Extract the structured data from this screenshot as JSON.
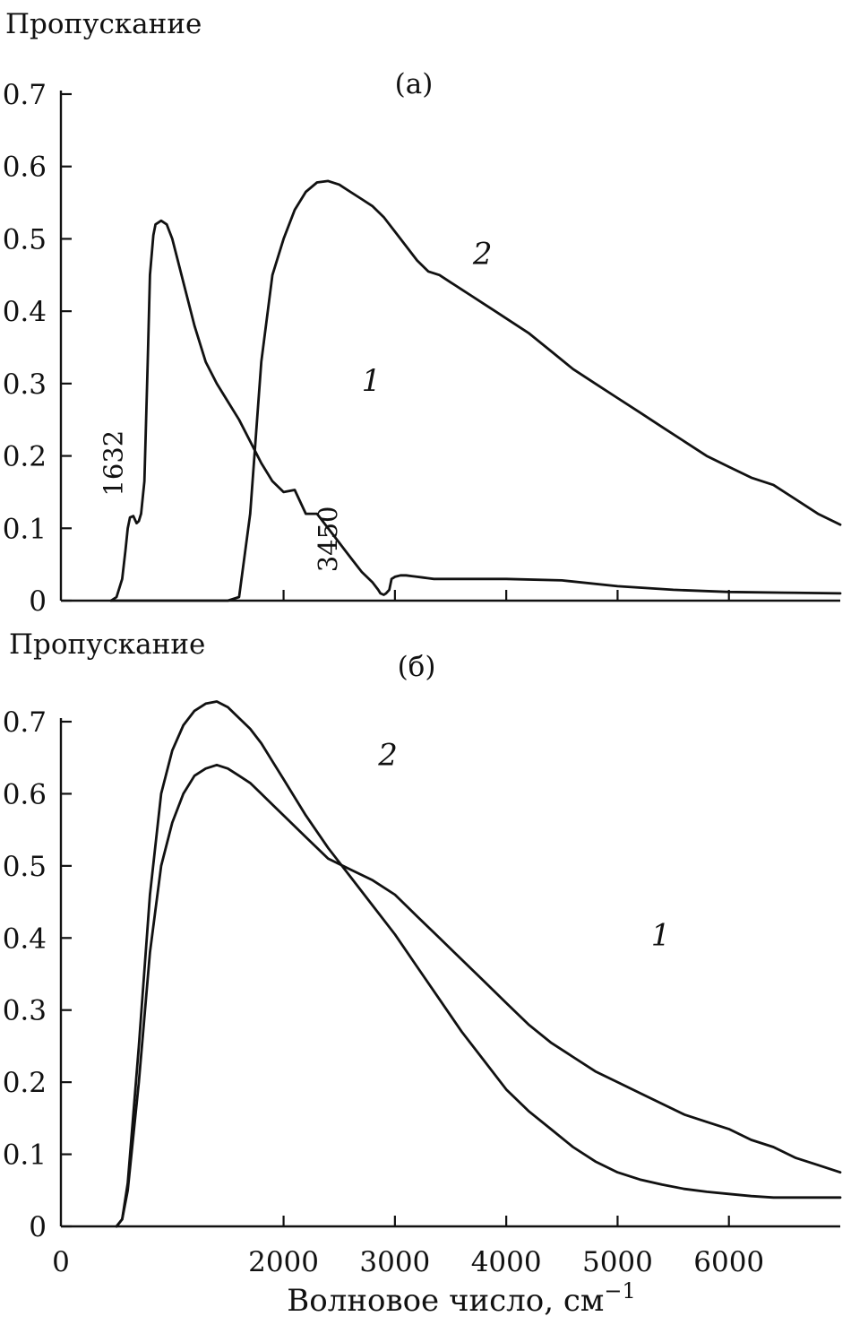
{
  "chart_data": [
    {
      "type": "line",
      "panel": "(а)",
      "ylabel": "Пропускание",
      "xlim": [
        0,
        7000
      ],
      "ylim": [
        0,
        0.7
      ],
      "yticks": [
        0,
        0.1,
        0.2,
        0.3,
        0.4,
        0.5,
        0.6,
        0.7
      ],
      "ytick_labels": [
        "0",
        "0.1",
        "0.2",
        "0.3",
        "0.4",
        "0.5",
        "0.6",
        "0.7"
      ],
      "xticks": [
        2000,
        3000,
        4000,
        5000,
        6000
      ],
      "series": [
        {
          "name": "1",
          "x": [
            450,
            500,
            550,
            580,
            600,
            620,
            650,
            680,
            700,
            720,
            750,
            780,
            800,
            830,
            850,
            900,
            950,
            1000,
            1100,
            1200,
            1300,
            1400,
            1500,
            1600,
            1700,
            1800,
            1900,
            2000,
            2100,
            2200,
            2300,
            2400,
            2500,
            2600,
            2700,
            2800,
            2850,
            2870,
            2900,
            2920,
            2950,
            2970,
            3000,
            3050,
            3100,
            3150,
            3200,
            3250,
            3300,
            3350,
            3400,
            3450,
            3500,
            3600,
            3650,
            3700,
            3750,
            3800,
            3900,
            4000,
            4500,
            5000,
            5500,
            6000,
            6500,
            7000
          ],
          "y": [
            0.0,
            0.005,
            0.03,
            0.07,
            0.1,
            0.115,
            0.117,
            0.107,
            0.11,
            0.12,
            0.165,
            0.33,
            0.45,
            0.505,
            0.52,
            0.525,
            0.52,
            0.5,
            0.44,
            0.38,
            0.33,
            0.3,
            0.275,
            0.25,
            0.22,
            0.19,
            0.165,
            0.15,
            0.153,
            0.12,
            0.12,
            0.1,
            0.08,
            0.06,
            0.04,
            0.025,
            0.015,
            0.01,
            0.008,
            0.01,
            0.015,
            0.03,
            0.033,
            0.035,
            0.035,
            0.034,
            0.033,
            0.032,
            0.031,
            0.03,
            0.03,
            0.03,
            0.03,
            0.03,
            0.03,
            0.03,
            0.03,
            0.03,
            0.03,
            0.03,
            0.028,
            0.02,
            0.015,
            0.012,
            0.011,
            0.01
          ],
          "label_pos": [
            2700,
            0.29
          ]
        },
        {
          "name": "2",
          "x": [
            450,
            500,
            600,
            700,
            800,
            900,
            1000,
            1100,
            1200,
            1300,
            1400,
            1500,
            1600,
            1700,
            1800,
            1900,
            2000,
            2100,
            2200,
            2300,
            2400,
            2500,
            2600,
            2700,
            2800,
            2900,
            3000,
            3100,
            3200,
            3300,
            3400,
            3500,
            3600,
            3700,
            3800,
            3900,
            4000,
            4200,
            4400,
            4600,
            4800,
            5000,
            5200,
            5400,
            5600,
            5800,
            6000,
            6200,
            6400,
            6600,
            6800,
            7000
          ],
          "y": [
            0.0,
            0.0,
            0.0,
            0.0,
            0.0,
            0.0,
            0.0,
            0.0,
            0.0,
            0.0,
            0.0,
            0.0,
            0.005,
            0.12,
            0.33,
            0.45,
            0.5,
            0.54,
            0.565,
            0.578,
            0.58,
            0.575,
            0.565,
            0.555,
            0.545,
            0.53,
            0.51,
            0.49,
            0.47,
            0.455,
            0.45,
            0.44,
            0.43,
            0.42,
            0.41,
            0.4,
            0.39,
            0.37,
            0.345,
            0.32,
            0.3,
            0.28,
            0.26,
            0.24,
            0.22,
            0.2,
            0.185,
            0.17,
            0.16,
            0.14,
            0.12,
            0.105
          ],
          "label_pos": [
            3700,
            0.465
          ]
        }
      ],
      "annotations": [
        {
          "text": "1632",
          "x": 550,
          "y": 0.19,
          "rotation": -90
        },
        {
          "text": "3450",
          "x": 2480,
          "y": 0.085,
          "rotation": -90
        }
      ]
    },
    {
      "type": "line",
      "panel": "(б)",
      "ylabel": "Пропускание",
      "xlabel": "Волновое число, см",
      "xlabel_sup": "−1",
      "xlim": [
        0,
        7000
      ],
      "ylim": [
        0,
        0.7
      ],
      "yticks": [
        0,
        0.1,
        0.2,
        0.3,
        0.4,
        0.5,
        0.6,
        0.7
      ],
      "ytick_labels": [
        "0",
        "0.1",
        "0.2",
        "0.3",
        "0.4",
        "0.5",
        "0.6",
        "0.7"
      ],
      "xticks": [
        0,
        2000,
        3000,
        4000,
        5000,
        6000
      ],
      "xtick_labels": [
        "0",
        "2000",
        "3000",
        "4000",
        "5000",
        "6000"
      ],
      "series": [
        {
          "name": "1",
          "x": [
            500,
            550,
            600,
            700,
            800,
            900,
            1000,
            1100,
            1200,
            1300,
            1400,
            1500,
            1600,
            1700,
            1800,
            1900,
            2000,
            2200,
            2400,
            2600,
            2800,
            3000,
            3200,
            3400,
            3600,
            3800,
            4000,
            4200,
            4400,
            4600,
            4800,
            5000,
            5200,
            5400,
            5600,
            5800,
            6000,
            6200,
            6400,
            6600,
            6800,
            7000
          ],
          "y": [
            0.0,
            0.01,
            0.05,
            0.2,
            0.38,
            0.5,
            0.56,
            0.6,
            0.625,
            0.635,
            0.64,
            0.635,
            0.625,
            0.615,
            0.6,
            0.585,
            0.57,
            0.54,
            0.51,
            0.495,
            0.48,
            0.46,
            0.43,
            0.4,
            0.37,
            0.34,
            0.31,
            0.28,
            0.255,
            0.235,
            0.215,
            0.2,
            0.185,
            0.17,
            0.155,
            0.145,
            0.135,
            0.12,
            0.11,
            0.095,
            0.085,
            0.075
          ],
          "label_pos": [
            5300,
            0.39
          ]
        },
        {
          "name": "2",
          "x": [
            500,
            550,
            600,
            700,
            800,
            900,
            1000,
            1100,
            1200,
            1300,
            1400,
            1500,
            1600,
            1700,
            1800,
            1900,
            2000,
            2200,
            2400,
            2600,
            2800,
            3000,
            3200,
            3400,
            3600,
            3800,
            4000,
            4200,
            4400,
            4600,
            4800,
            5000,
            5200,
            5400,
            5600,
            5800,
            6000,
            6200,
            6400,
            6600,
            6800,
            7000
          ],
          "y": [
            0.0,
            0.01,
            0.06,
            0.25,
            0.46,
            0.6,
            0.66,
            0.695,
            0.715,
            0.725,
            0.728,
            0.72,
            0.705,
            0.69,
            0.67,
            0.645,
            0.62,
            0.57,
            0.525,
            0.485,
            0.445,
            0.405,
            0.36,
            0.315,
            0.27,
            0.23,
            0.19,
            0.16,
            0.135,
            0.11,
            0.09,
            0.075,
            0.065,
            0.058,
            0.052,
            0.048,
            0.045,
            0.042,
            0.04,
            0.04,
            0.04,
            0.04
          ],
          "label_pos": [
            2850,
            0.64
          ]
        }
      ]
    }
  ]
}
